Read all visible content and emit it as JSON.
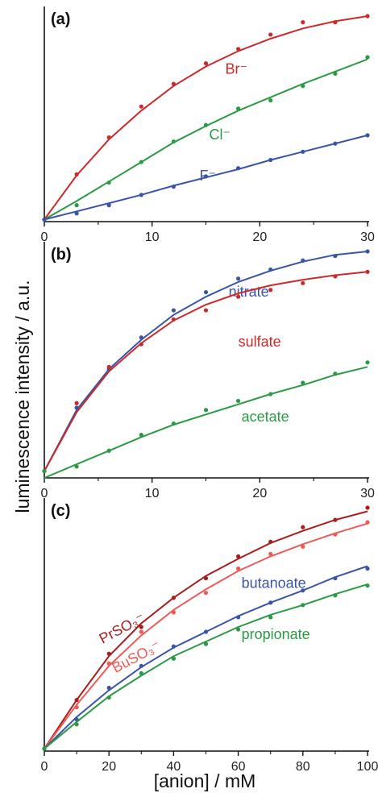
{
  "ylabel": "luminescence intensity / a.u.",
  "xlabel": "[anion] / mM",
  "chart_data": [
    {
      "type": "scatter",
      "panel_label": "(a)",
      "xlim": [
        0,
        30
      ],
      "ylim": [
        0,
        1
      ],
      "xticks": [
        0,
        10,
        20,
        30
      ],
      "x": [
        0,
        3,
        6,
        9,
        12,
        15,
        18,
        21,
        24,
        27,
        30
      ],
      "series": [
        {
          "name": "Br⁻",
          "color": "#cc2a2a",
          "values": [
            0.01,
            0.23,
            0.41,
            0.56,
            0.67,
            0.77,
            0.84,
            0.91,
            0.97,
            0.97,
            1.0
          ],
          "fit": [
            0.01,
            0.225,
            0.4,
            0.54,
            0.66,
            0.755,
            0.83,
            0.89,
            0.94,
            0.975,
            1.0
          ]
        },
        {
          "name": "Cl⁻",
          "color": "#2a9a45",
          "values": [
            0.01,
            0.08,
            0.19,
            0.29,
            0.39,
            0.47,
            0.55,
            0.59,
            0.66,
            0.72,
            0.8
          ],
          "fit": [
            0.01,
            0.1,
            0.195,
            0.29,
            0.385,
            0.465,
            0.54,
            0.605,
            0.67,
            0.73,
            0.79
          ]
        },
        {
          "name": "F⁻",
          "color": "#3a55a8",
          "values": [
            0.01,
            0.04,
            0.08,
            0.13,
            0.17,
            0.22,
            0.26,
            0.3,
            0.34,
            0.38,
            0.42
          ],
          "fit": [
            0.01,
            0.05,
            0.09,
            0.13,
            0.175,
            0.215,
            0.255,
            0.3,
            0.34,
            0.38,
            0.42
          ]
        }
      ]
    },
    {
      "type": "scatter",
      "panel_label": "(b)",
      "xlim": [
        0,
        30
      ],
      "ylim": [
        0,
        1
      ],
      "xticks": [
        0,
        10,
        20,
        30
      ],
      "x": [
        0,
        3,
        6,
        9,
        12,
        15,
        18,
        21,
        24,
        27,
        30
      ],
      "series": [
        {
          "name": "nitrate",
          "color": "#3a55a8",
          "values": [
            0.03,
            0.31,
            0.48,
            0.62,
            0.74,
            0.82,
            0.88,
            0.92,
            0.96,
            0.98,
            1.0
          ],
          "fit": [
            0.03,
            0.3,
            0.48,
            0.61,
            0.72,
            0.8,
            0.865,
            0.915,
            0.955,
            0.985,
            1.0
          ]
        },
        {
          "name": "sulfate",
          "color": "#cc2a2a",
          "values": [
            0.03,
            0.33,
            0.49,
            0.59,
            0.7,
            0.74,
            0.8,
            0.83,
            0.86,
            0.89,
            0.91
          ],
          "fit": [
            0.03,
            0.29,
            0.47,
            0.595,
            0.695,
            0.765,
            0.815,
            0.85,
            0.875,
            0.895,
            0.91
          ]
        },
        {
          "name": "acetate",
          "color": "#2a9a45",
          "values": [
            0.03,
            0.05,
            0.12,
            0.19,
            0.24,
            0.3,
            0.34,
            0.37,
            0.42,
            0.46,
            0.51
          ],
          "fit": [
            0.0,
            0.06,
            0.12,
            0.18,
            0.235,
            0.28,
            0.325,
            0.37,
            0.41,
            0.455,
            0.49
          ]
        }
      ]
    },
    {
      "type": "scatter",
      "panel_label": "(c)",
      "xlim": [
        0,
        100
      ],
      "ylim": [
        0,
        1
      ],
      "xticks": [
        0,
        20,
        40,
        60,
        80,
        100
      ],
      "x": [
        0,
        10,
        20,
        30,
        40,
        50,
        60,
        70,
        80,
        90,
        100
      ],
      "series": [
        {
          "name": "PrSO₃⁻",
          "color": "#a81e1e",
          "values": [
            0.01,
            0.21,
            0.4,
            0.51,
            0.63,
            0.71,
            0.8,
            0.86,
            0.92,
            0.95,
            1.0
          ],
          "fit": [
            0.01,
            0.21,
            0.39,
            0.525,
            0.63,
            0.72,
            0.79,
            0.855,
            0.905,
            0.95,
            0.985
          ]
        },
        {
          "name": "BuSO₃⁻",
          "color": "#ee5a55",
          "values": [
            0.01,
            0.18,
            0.36,
            0.49,
            0.57,
            0.65,
            0.75,
            0.81,
            0.84,
            0.89,
            0.94
          ],
          "fit": [
            0.01,
            0.19,
            0.35,
            0.475,
            0.58,
            0.665,
            0.74,
            0.8,
            0.85,
            0.895,
            0.935
          ]
        },
        {
          "name": "butanoate",
          "color": "#3a55a8",
          "values": [
            0.01,
            0.13,
            0.26,
            0.35,
            0.43,
            0.49,
            0.55,
            0.61,
            0.66,
            0.71,
            0.75
          ],
          "fit": [
            0.01,
            0.14,
            0.25,
            0.345,
            0.425,
            0.49,
            0.555,
            0.61,
            0.66,
            0.715,
            0.76
          ]
        },
        {
          "name": "propionate",
          "color": "#2a9a45",
          "values": [
            0.01,
            0.11,
            0.22,
            0.32,
            0.38,
            0.44,
            0.5,
            0.55,
            0.6,
            0.64,
            0.68
          ],
          "fit": [
            0.01,
            0.12,
            0.225,
            0.31,
            0.39,
            0.45,
            0.51,
            0.56,
            0.6,
            0.645,
            0.685
          ]
        }
      ]
    }
  ]
}
